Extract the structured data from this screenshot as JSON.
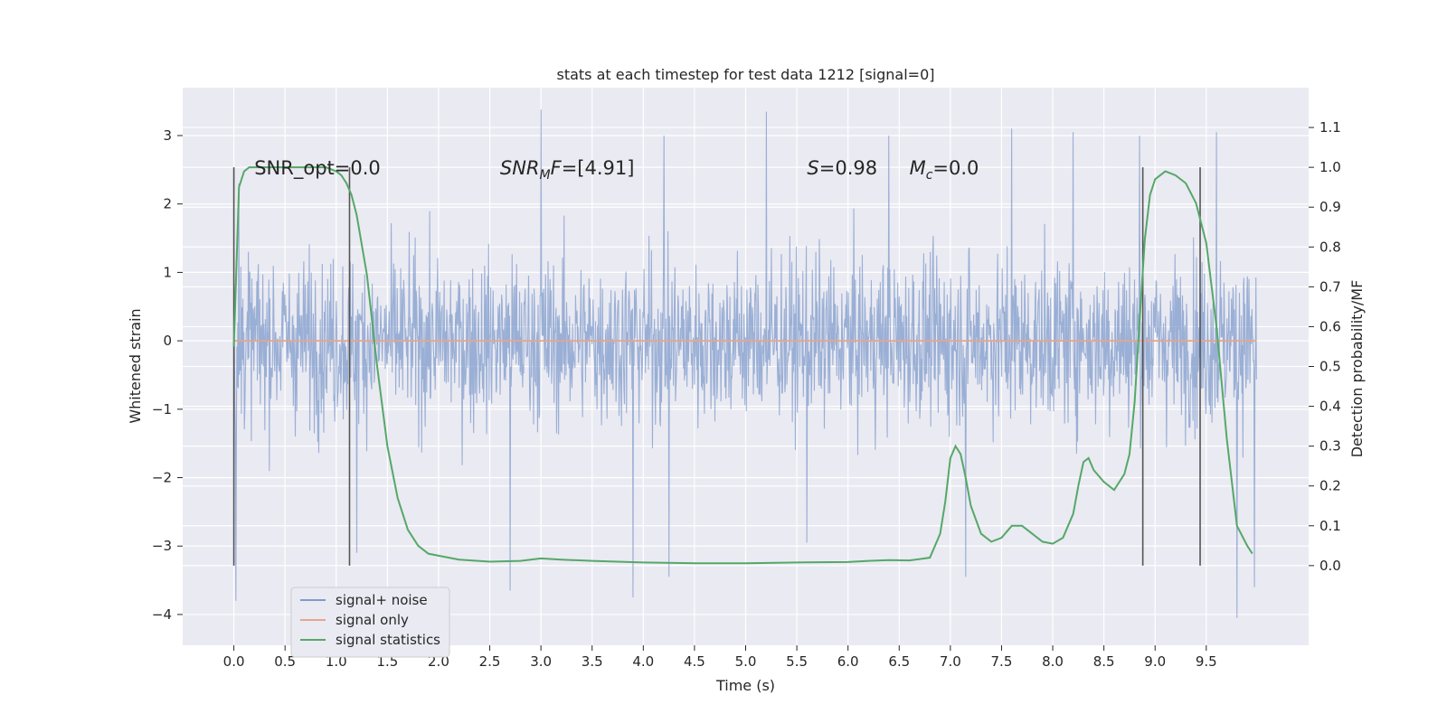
{
  "chart_data": {
    "type": "line",
    "title": "stats at each timestep for test data 1212 [signal=0]",
    "xlabel": "Time (s)",
    "ylabel": "Whitened strain",
    "y2label": "Detection probability/MF",
    "xlim": [
      -0.5,
      10.5
    ],
    "ylim": [
      -4.45,
      3.7
    ],
    "y2lim": [
      -0.2,
      1.2
    ],
    "xticks": [
      0.0,
      0.5,
      1.0,
      1.5,
      2.0,
      2.5,
      3.0,
      3.5,
      4.0,
      4.5,
      5.0,
      5.5,
      6.0,
      6.5,
      7.0,
      7.5,
      8.0,
      8.5,
      9.0,
      9.5
    ],
    "xtick_labels": [
      "0.0",
      "0.5",
      "1.0",
      "1.5",
      "2.0",
      "2.5",
      "3.0",
      "3.5",
      "4.0",
      "4.5",
      "5.0",
      "5.5",
      "6.0",
      "6.5",
      "7.0",
      "7.5",
      "8.0",
      "8.5",
      "9.0",
      "9.5"
    ],
    "yticks": [
      -4,
      -3,
      -2,
      -1,
      0,
      1,
      2,
      3
    ],
    "ytick_labels": [
      "−4",
      "−3",
      "−2",
      "−1",
      "0",
      "1",
      "2",
      "3"
    ],
    "y2ticks": [
      0.0,
      0.1,
      0.2,
      0.3,
      0.4,
      0.5,
      0.6,
      0.7,
      0.8,
      0.9,
      1.0,
      1.1
    ],
    "y2tick_labels": [
      "0.0",
      "0.1",
      "0.2",
      "0.3",
      "0.4",
      "0.5",
      "0.6",
      "0.7",
      "0.8",
      "0.9",
      "1.0",
      "1.1"
    ],
    "grid": true,
    "legend_position": "lower-left",
    "annotations": [
      {
        "text": "SNR_opt=0.0",
        "x": 0.2,
        "y2": 1.0
      },
      {
        "text": "SNR",
        "sub": "M",
        "tail": "F=[4.91]",
        "italic": true,
        "x": 2.6,
        "y2": 1.0
      },
      {
        "text": "S",
        "tail": "=0.98",
        "italic": true,
        "x": 5.6,
        "y2": 1.0
      },
      {
        "text": "M",
        "sub": "c",
        "tail": "=0.0",
        "italic": true,
        "x": 6.6,
        "y2": 1.0
      }
    ],
    "vertical_lines": {
      "x": [
        0.0,
        1.13,
        8.88,
        9.44
      ],
      "y2_range": [
        0.0,
        1.0
      ],
      "color": "#555555"
    },
    "series": [
      {
        "name": "signal+ noise",
        "axis": "left",
        "color": "#7f9bcb",
        "x_range": [
          0.0,
          9.99
        ],
        "samples": 2048,
        "envelope": [
          -2.2,
          2.3
        ],
        "peaks": [
          {
            "x": 0.02,
            "y": -3.8
          },
          {
            "x": 0.05,
            "y": 2.3
          },
          {
            "x": 1.2,
            "y": -3.1
          },
          {
            "x": 2.7,
            "y": -3.65
          },
          {
            "x": 3.0,
            "y": 3.38
          },
          {
            "x": 3.9,
            "y": -3.75
          },
          {
            "x": 4.25,
            "y": -3.45
          },
          {
            "x": 5.2,
            "y": 3.35
          },
          {
            "x": 5.6,
            "y": -2.95
          },
          {
            "x": 7.15,
            "y": -3.45
          },
          {
            "x": 7.6,
            "y": 3.1
          },
          {
            "x": 8.2,
            "y": 3.05
          },
          {
            "x": 8.85,
            "y": 3.0
          },
          {
            "x": 9.6,
            "y": 3.05
          },
          {
            "x": 9.8,
            "y": -4.05
          },
          {
            "x": 9.97,
            "y": -3.6
          },
          {
            "x": 6.4,
            "y": 3.0
          },
          {
            "x": 4.2,
            "y": 3.0
          }
        ]
      },
      {
        "name": "signal only",
        "axis": "left",
        "color": "#e8a58a",
        "x": [
          0.0,
          9.99
        ],
        "y": [
          0.0,
          0.0
        ]
      },
      {
        "name": "signal statistics",
        "axis": "right",
        "color": "#55a868",
        "x": [
          0.0,
          0.05,
          0.1,
          0.15,
          0.2,
          0.3,
          0.5,
          0.7,
          0.9,
          1.0,
          1.05,
          1.1,
          1.15,
          1.2,
          1.3,
          1.4,
          1.5,
          1.6,
          1.7,
          1.8,
          1.9,
          2.0,
          2.2,
          2.5,
          2.8,
          3.0,
          3.2,
          3.5,
          4.0,
          4.5,
          5.0,
          5.5,
          6.0,
          6.2,
          6.4,
          6.6,
          6.8,
          6.9,
          6.95,
          7.0,
          7.05,
          7.1,
          7.15,
          7.2,
          7.3,
          7.4,
          7.5,
          7.6,
          7.7,
          7.8,
          7.9,
          8.0,
          8.1,
          8.2,
          8.25,
          8.3,
          8.35,
          8.4,
          8.5,
          8.6,
          8.7,
          8.75,
          8.8,
          8.85,
          8.9,
          8.95,
          9.0,
          9.1,
          9.2,
          9.3,
          9.4,
          9.5,
          9.6,
          9.7,
          9.8,
          9.9,
          9.95
        ],
        "y": [
          0.55,
          0.95,
          0.99,
          1.0,
          1.0,
          1.0,
          1.0,
          1.0,
          1.0,
          0.99,
          0.98,
          0.96,
          0.93,
          0.88,
          0.73,
          0.5,
          0.3,
          0.17,
          0.09,
          0.05,
          0.03,
          0.025,
          0.015,
          0.01,
          0.012,
          0.018,
          0.015,
          0.012,
          0.008,
          0.006,
          0.006,
          0.008,
          0.009,
          0.012,
          0.014,
          0.013,
          0.02,
          0.08,
          0.16,
          0.27,
          0.3,
          0.28,
          0.22,
          0.15,
          0.08,
          0.06,
          0.07,
          0.1,
          0.1,
          0.08,
          0.06,
          0.055,
          0.07,
          0.13,
          0.2,
          0.26,
          0.27,
          0.24,
          0.21,
          0.19,
          0.23,
          0.28,
          0.41,
          0.62,
          0.82,
          0.93,
          0.97,
          0.99,
          0.98,
          0.96,
          0.91,
          0.81,
          0.6,
          0.32,
          0.1,
          0.05,
          0.03
        ]
      }
    ]
  }
}
